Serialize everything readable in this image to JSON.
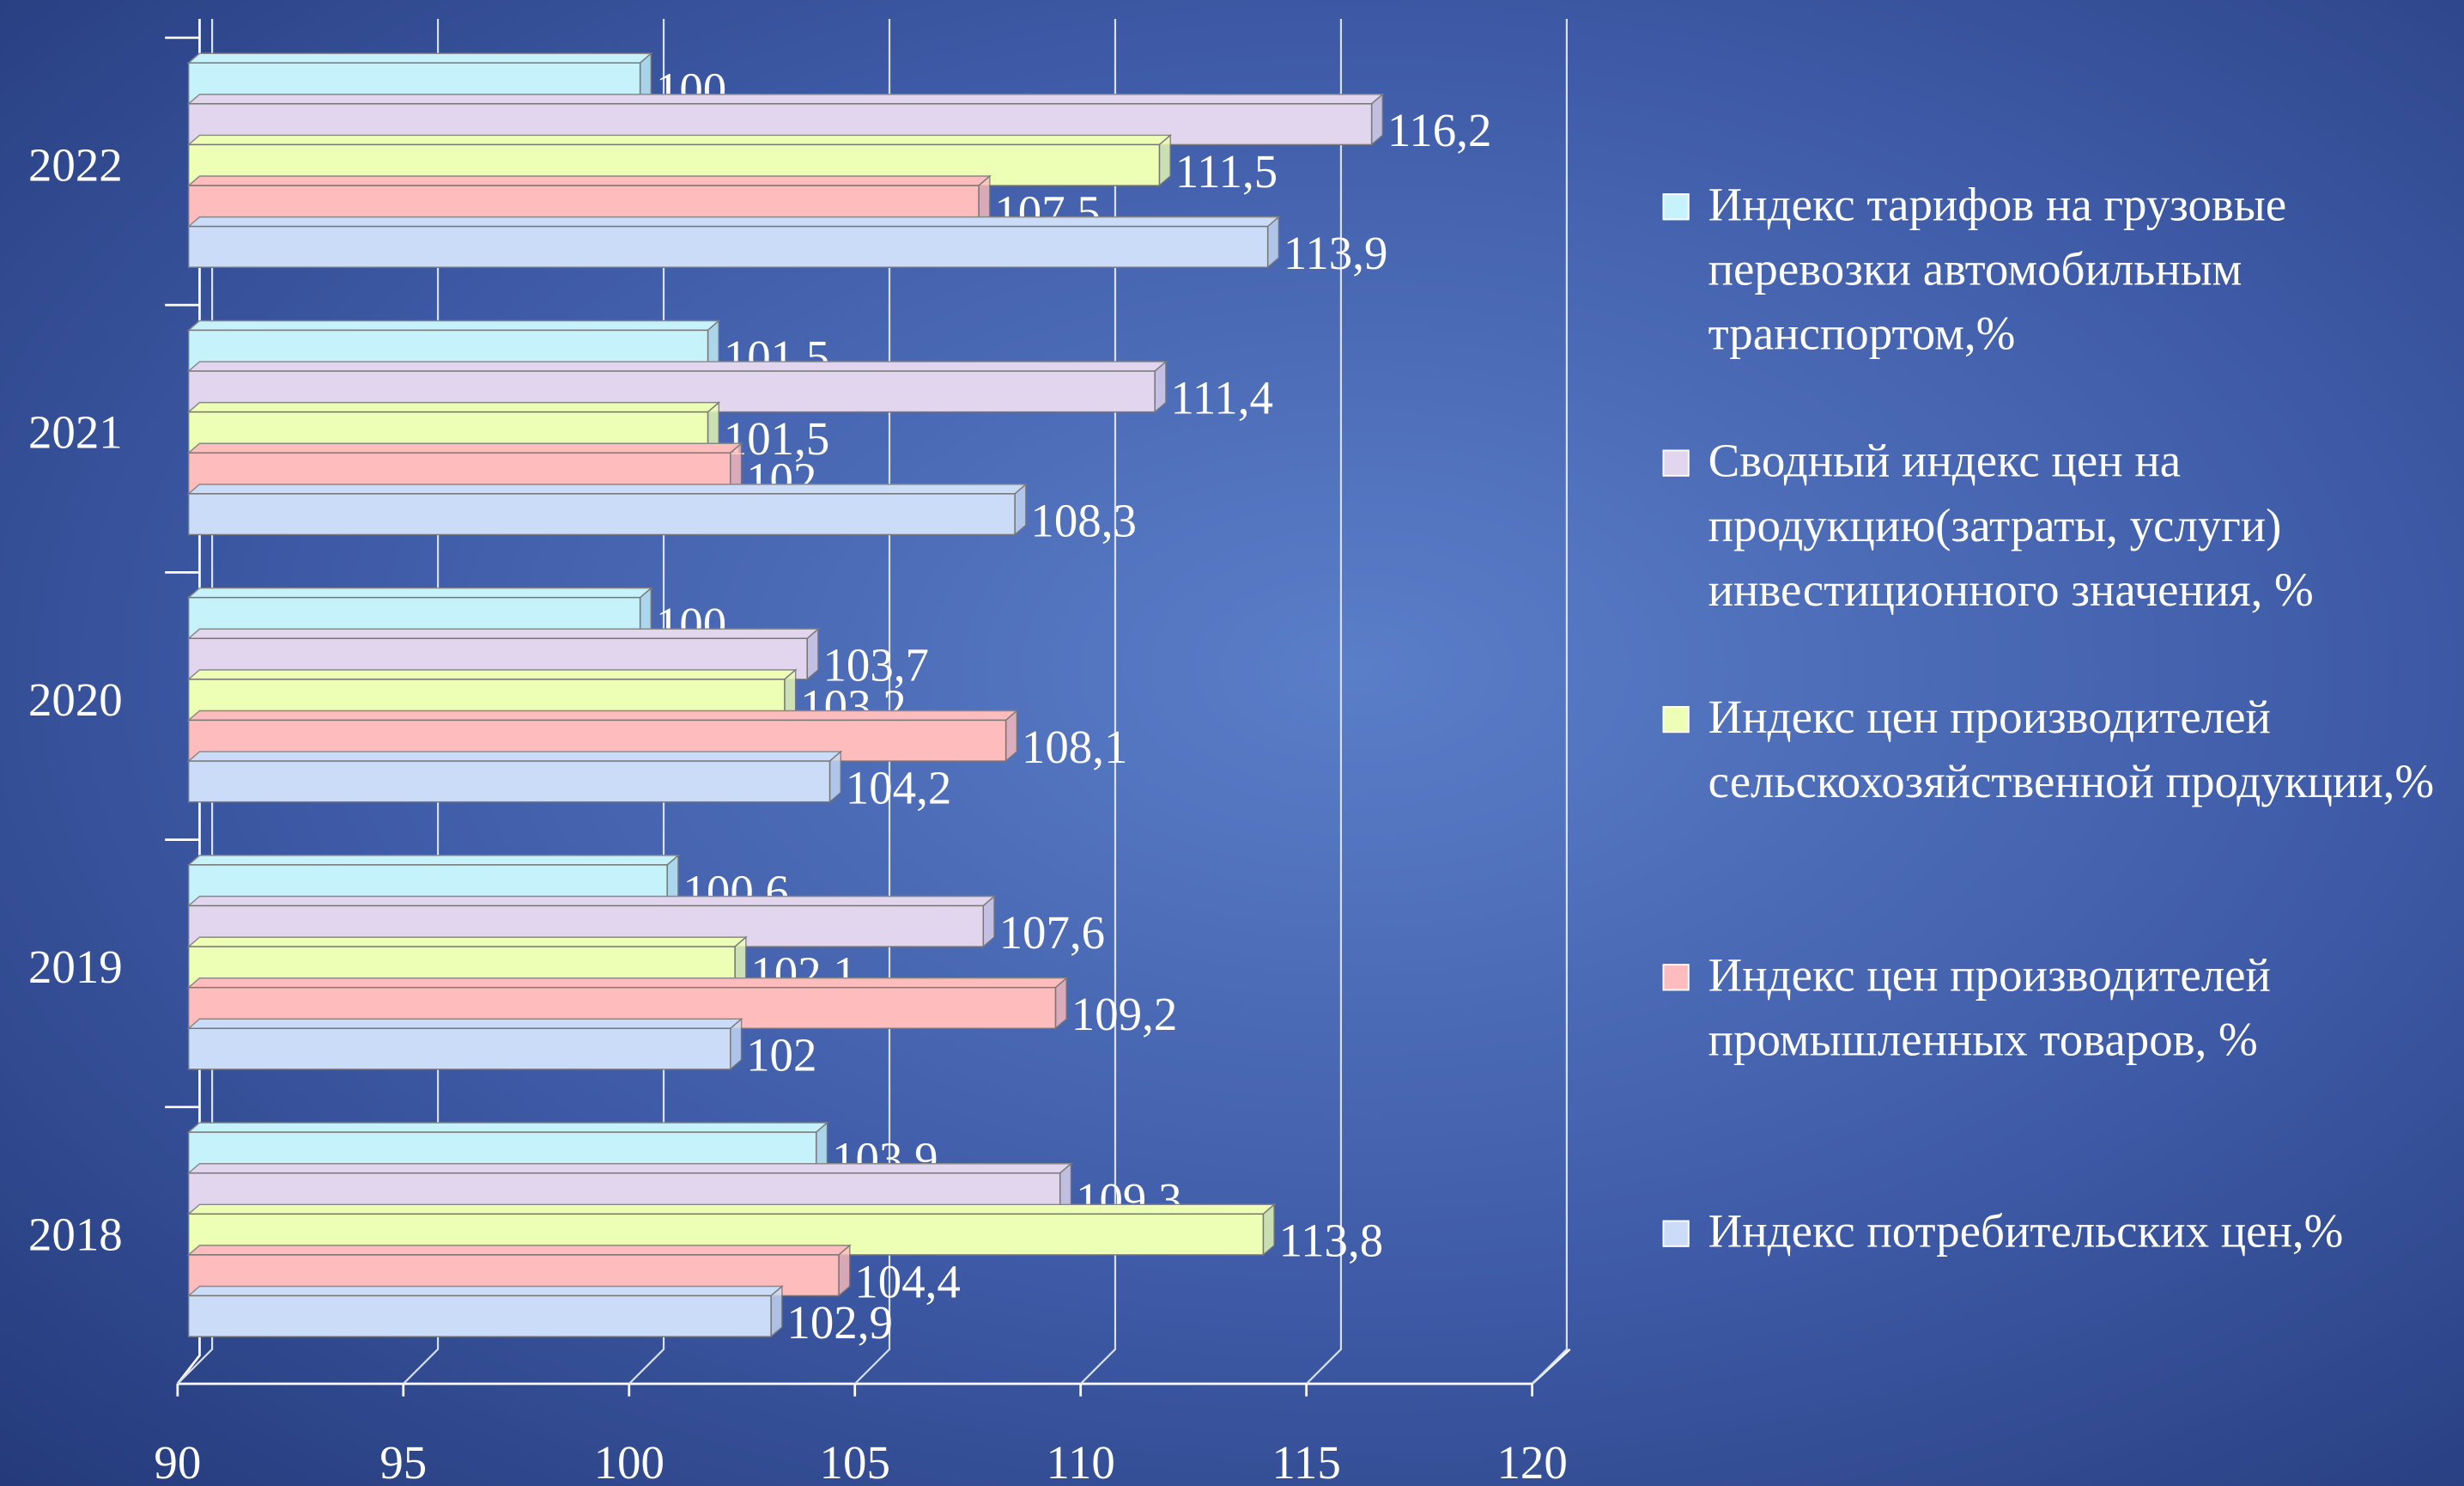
{
  "chart_data": {
    "type": "bar",
    "orientation": "horizontal",
    "categories": [
      "2018",
      "2019",
      "2020",
      "2021",
      "2022"
    ],
    "series": [
      {
        "name": "Индекс тарифов на грузовые перевозки автомобильным транспортом,%",
        "color": "#c6f3fb",
        "values": [
          103.9,
          100.6,
          100,
          101.5,
          100
        ],
        "value_labels": [
          "103,9",
          "100,6",
          "100",
          "101,5",
          "100"
        ]
      },
      {
        "name": "Сводный индекс цен на продукцию(затраты, услуги) инвестиционного значения, %",
        "color": "#e2d6ee",
        "values": [
          109.3,
          107.6,
          103.7,
          111.4,
          116.2
        ],
        "value_labels": [
          "109,3",
          "107,6",
          "103,7",
          "111,4",
          "116,2"
        ]
      },
      {
        "name": "Индекс цен производителей сельскохозяйственной продукции,%",
        "color": "#ecffb4",
        "values": [
          113.8,
          102.1,
          103.2,
          101.5,
          111.5
        ],
        "value_labels": [
          "113,8",
          "102,1",
          "103,2",
          "101,5",
          "111,5"
        ]
      },
      {
        "name": "Индекс цен производителей промышленных товаров, %",
        "color": "#ffbcbc",
        "values": [
          104.4,
          109.2,
          108.1,
          102,
          107.5
        ],
        "value_labels": [
          "104,4",
          "109,2",
          "108,1",
          "102",
          "107,5"
        ]
      },
      {
        "name": "Индекс потребительских цен,%",
        "color": "#cadcf7",
        "values": [
          102.9,
          102,
          104.2,
          108.3,
          113.9
        ],
        "value_labels": [
          "102,9",
          "102",
          "104,2",
          "108,3",
          "113,9"
        ]
      }
    ],
    "xlim": [
      90,
      120
    ],
    "xticks": [
      90,
      95,
      100,
      105,
      110,
      115,
      120
    ],
    "grid": true
  }
}
